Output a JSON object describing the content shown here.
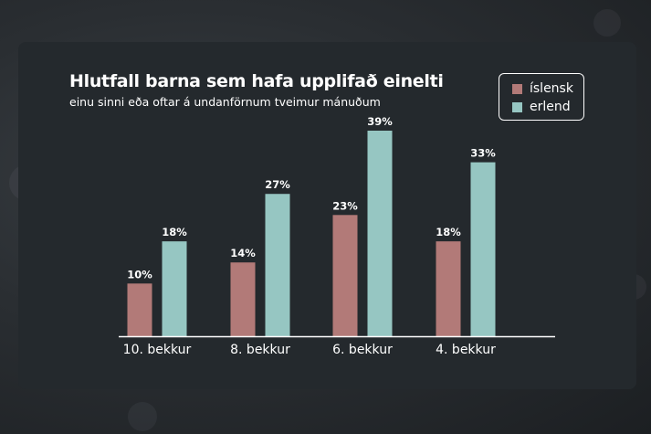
{
  "chart_data": {
    "type": "bar",
    "title": "Hlutfall barna sem hafa upplifað einelti",
    "subtitle": "einu sinni eða oftar á undanförnum tveimur mánuðum",
    "categories": [
      "10. bekkur",
      "8. bekkur",
      "6. bekkur",
      "4. bekkur"
    ],
    "series": [
      {
        "name": "íslensk",
        "values": [
          10,
          14,
          23,
          18
        ],
        "labels": [
          "10%",
          "14%",
          "23%",
          "18%"
        ],
        "color": "#b27a78"
      },
      {
        "name": "erlend",
        "values": [
          18,
          27,
          39,
          33
        ],
        "labels": [
          "18%",
          "27%",
          "39%",
          "33%"
        ],
        "color": "#96c6c2"
      }
    ],
    "ylim": [
      0,
      39
    ],
    "grid": false,
    "legend_position": "top-right"
  },
  "colors": {
    "panel": "#24292d",
    "text": "#ffffff",
    "axis": "#ffffff"
  }
}
